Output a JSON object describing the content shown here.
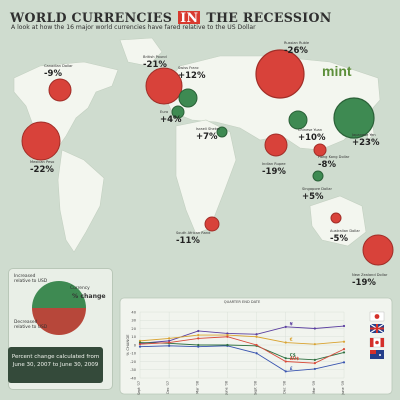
{
  "title_parts": [
    "WORLD CURRENCIES",
    "IN",
    "THE RECESSION"
  ],
  "subtitle": "A look at how the 16 major world currencies have fared relative to the US Dollar",
  "brand": "mint",
  "map_labels": [
    {
      "name": "Canadian Dollar",
      "pct": "-9%"
    },
    {
      "name": "British Pound",
      "pct": "-21%"
    },
    {
      "name": "Swiss Franc",
      "pct": "+12%"
    },
    {
      "name": "Russian Ruble",
      "pct": "-26%"
    },
    {
      "name": "Euro",
      "pct": "+4%"
    },
    {
      "name": "Israeli Shekel",
      "pct": "+7%"
    },
    {
      "name": "Chinese Yuan",
      "pct": "+10%"
    },
    {
      "name": "Japanese Yen",
      "pct": "+23%"
    },
    {
      "name": "Hong Kong Dollar",
      "pct": "-8%"
    },
    {
      "name": "Mexican Peso",
      "pct": "-22%"
    },
    {
      "name": "Indian Rupee",
      "pct": "-19%"
    },
    {
      "name": "Singapore Dollar",
      "pct": "+5%"
    },
    {
      "name": "South African Rand",
      "pct": "-11%"
    },
    {
      "name": "Australian Dollar",
      "pct": "-5%"
    },
    {
      "name": "New Zealand Dollar",
      "pct": "-19%"
    }
  ],
  "legend": {
    "increased": "Increased relative to USD",
    "currency": "Currency",
    "pct_change": "% change",
    "decreased": "Decreased relative to USD",
    "note": "Percent change calculated from June 30, 2007 to June 30, 2009"
  },
  "colors": {
    "increase": "#3e8a52",
    "decrease": "#d8423a",
    "background": "#cfdccf",
    "land": "#f3f6ef",
    "accent": "#d83a2e"
  },
  "chart_data": {
    "type": "line",
    "ylabel": "% CHANGE",
    "xlabel": "QUARTER END DATE",
    "ylim": [
      -40,
      40
    ],
    "y_ticks": [
      "40",
      "30",
      "20",
      "10",
      "0",
      "-10",
      "-20",
      "-30",
      "-40"
    ],
    "categories": [
      "Sept '07",
      "Dec '07",
      "Mar '08",
      "June '08",
      "Sept '08",
      "Dec '08",
      "Mar '09",
      "June '09"
    ],
    "series": [
      {
        "name": "¥",
        "color": "#5b3fa0",
        "values": [
          2,
          5,
          17,
          14,
          13,
          22,
          20,
          23
        ]
      },
      {
        "name": "£",
        "color": "#3a55b0",
        "values": [
          -2,
          -1,
          -2,
          -1,
          -10,
          -32,
          -29,
          -21
        ]
      },
      {
        "name": "€",
        "color": "#d9a331",
        "values": [
          5,
          8,
          12,
          12,
          10,
          3,
          1,
          4
        ]
      },
      {
        "name": "C$",
        "color": "#2f7040",
        "values": [
          3,
          2,
          0,
          0,
          -1,
          -16,
          -18,
          -9
        ]
      },
      {
        "name": "AU$",
        "color": "#d84a3a",
        "values": [
          1,
          3,
          8,
          10,
          0,
          -20,
          -22,
          -5
        ]
      }
    ]
  }
}
